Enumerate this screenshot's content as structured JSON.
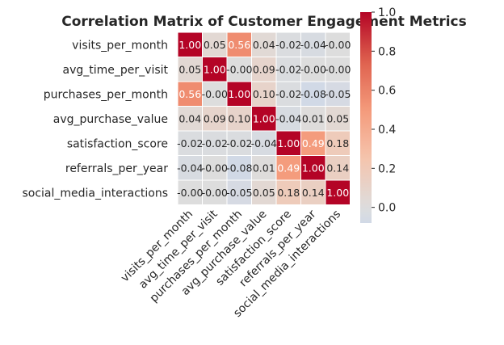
{
  "chart_data": {
    "type": "heatmap",
    "title": "Correlation Matrix of Customer Engagement Metrics",
    "rows": [
      "visits_per_month",
      "avg_time_per_visit",
      "purchases_per_month",
      "avg_purchase_value",
      "satisfaction_score",
      "referrals_per_year",
      "social_media_interactions"
    ],
    "columns": [
      "visits_per_month",
      "avg_time_per_visit",
      "purchases_per_month",
      "avg_purchase_value",
      "satisfaction_score",
      "referrals_per_year",
      "social_media_interactions"
    ],
    "labels": [
      [
        "1.00",
        "0.05",
        "0.56",
        "0.04",
        "-0.02",
        "-0.04",
        "-0.00"
      ],
      [
        "0.05",
        "1.00",
        "-0.00",
        "0.09",
        "-0.02",
        "-0.00",
        "-0.00"
      ],
      [
        "0.56",
        "-0.00",
        "1.00",
        "0.10",
        "-0.02",
        "-0.08",
        "-0.05"
      ],
      [
        "0.04",
        "0.09",
        "0.10",
        "1.00",
        "-0.04",
        "0.01",
        "0.05"
      ],
      [
        "-0.02",
        "-0.02",
        "-0.02",
        "-0.04",
        "1.00",
        "0.49",
        "0.18"
      ],
      [
        "-0.04",
        "-0.00",
        "-0.08",
        "0.01",
        "0.49",
        "1.00",
        "0.14"
      ],
      [
        "-0.00",
        "-0.00",
        "-0.05",
        "0.05",
        "0.18",
        "0.14",
        "1.00"
      ]
    ],
    "values": [
      [
        1.0,
        0.05,
        0.56,
        0.04,
        -0.02,
        -0.04,
        -0.0
      ],
      [
        0.05,
        1.0,
        -0.0,
        0.09,
        -0.02,
        -0.0,
        -0.0
      ],
      [
        0.56,
        -0.0,
        1.0,
        0.1,
        -0.02,
        -0.08,
        -0.05
      ],
      [
        0.04,
        0.09,
        0.1,
        1.0,
        -0.04,
        0.01,
        0.05
      ],
      [
        -0.02,
        -0.02,
        -0.02,
        -0.04,
        1.0,
        0.49,
        0.18
      ],
      [
        -0.04,
        -0.0,
        -0.08,
        0.01,
        0.49,
        1.0,
        0.14
      ],
      [
        -0.0,
        -0.0,
        -0.05,
        0.05,
        0.18,
        0.14,
        1.0
      ]
    ],
    "colorbar": {
      "min": -0.08,
      "max": 1.0,
      "ticks": [
        0.0,
        0.2,
        0.4,
        0.6,
        0.8,
        1.0
      ],
      "tick_labels": [
        "0.0",
        "0.2",
        "0.4",
        "0.6",
        "0.8",
        "1.0"
      ],
      "colormap": "coolwarm"
    }
  }
}
